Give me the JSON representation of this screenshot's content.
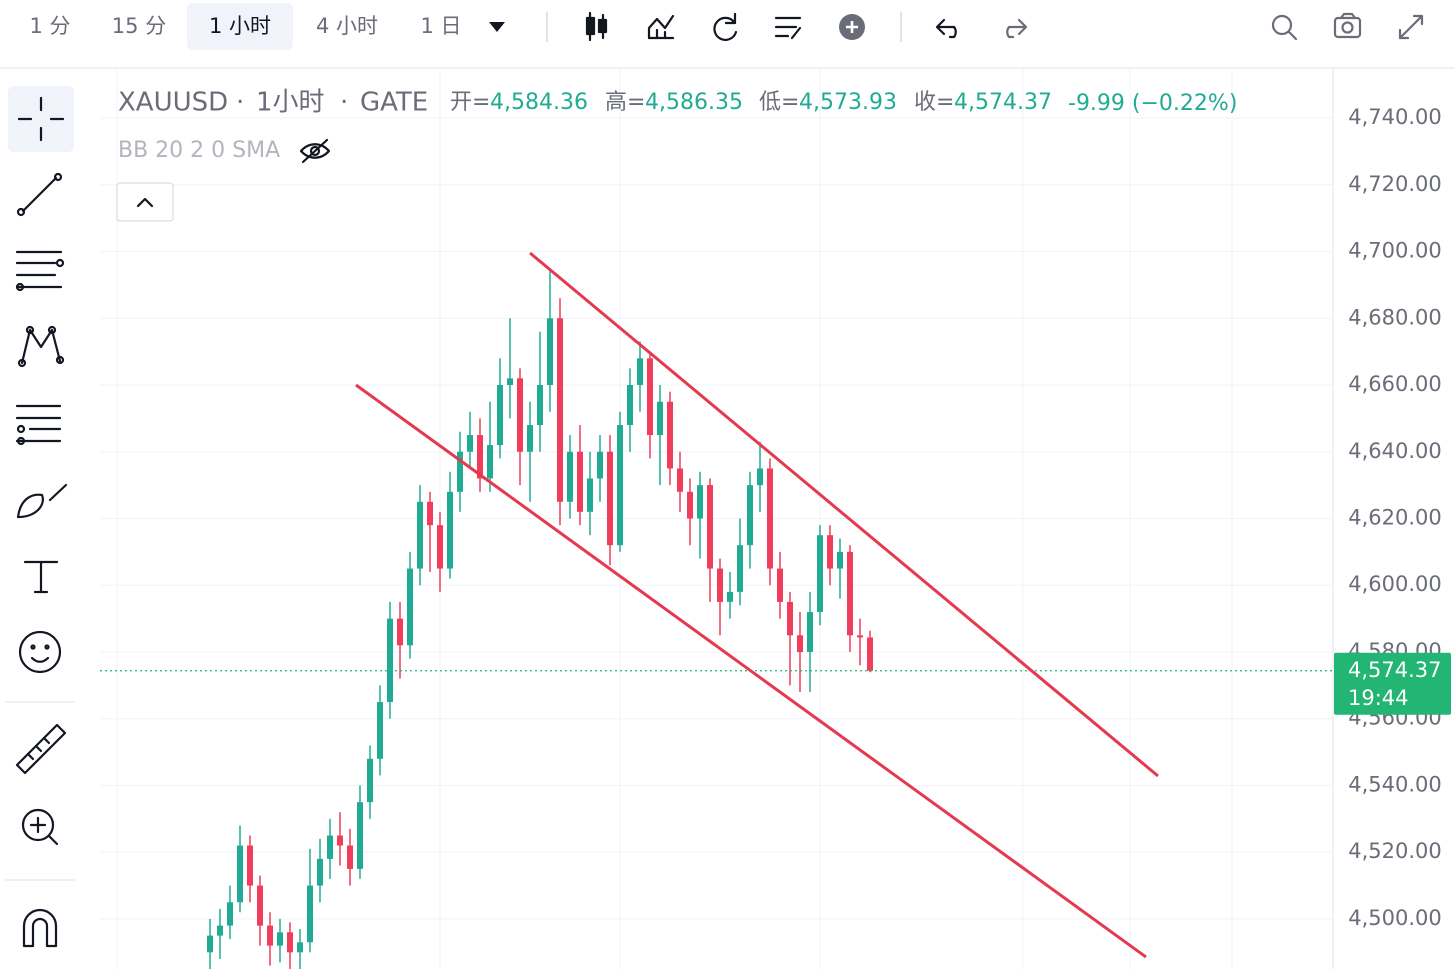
{
  "toolbar": {
    "intervals": [
      "1 分",
      "15 分",
      "1 小时",
      "4 小时",
      "1 日"
    ]
  },
  "header": {
    "symbol": "XAUUSD",
    "interval": "1小时",
    "exchange": "GATE",
    "open_label": "开=",
    "open": "4,584.36",
    "high_label": "高=",
    "high": "4,586.35",
    "low_label": "低=",
    "low": "4,573.93",
    "close_label": "收=",
    "close": "4,574.37",
    "change": "-9.99 (−0.22%)",
    "indicator": "BB 20 2 0 SMA"
  },
  "chart_data": {
    "type": "candlestick",
    "up_color": "#22ab94",
    "down_color": "#ef3d5b",
    "open": [
      4490,
      4495,
      4498,
      4505,
      4522,
      4510,
      4498,
      4492,
      4496,
      4490,
      4493,
      4510,
      4518,
      4525,
      4522,
      4515,
      4535,
      4548,
      4565,
      4590,
      4582,
      4605,
      4625,
      4618,
      4605,
      4628,
      4640,
      4645,
      4632,
      4642,
      4660,
      4662,
      4640,
      4648,
      4660,
      4680,
      4625,
      4640,
      4622,
      4632,
      4640,
      4612,
      4648,
      4660,
      4668,
      4645,
      4655,
      4635,
      4628,
      4620,
      4630,
      4605,
      4595,
      4598,
      4612,
      4630,
      4635,
      4605,
      4595,
      4585,
      4580,
      4592,
      4615,
      4605,
      4610,
      4585,
      4584.36
    ],
    "high": [
      4500,
      4503,
      4510,
      4528,
      4525,
      4513,
      4502,
      4500,
      4499,
      4497,
      4521,
      4524,
      4530,
      4532,
      4527,
      4540,
      4552,
      4570,
      4595,
      4595,
      4610,
      4630,
      4628,
      4622,
      4634,
      4646,
      4652,
      4650,
      4655,
      4668,
      4680,
      4665,
      4655,
      4676,
      4695,
      4686,
      4645,
      4648,
      4640,
      4645,
      4645,
      4652,
      4665,
      4673,
      4670,
      4660,
      4658,
      4640,
      4632,
      4634,
      4632,
      4608,
      4604,
      4620,
      4634,
      4643,
      4638,
      4610,
      4598,
      4592,
      4598,
      4618,
      4618,
      4614,
      4612,
      4590,
      4586.35
    ],
    "low": [
      4485,
      4488,
      4494,
      4502,
      4505,
      4492,
      4486,
      4487,
      4485,
      4485,
      4490,
      4505,
      4512,
      4516,
      4510,
      4512,
      4530,
      4543,
      4560,
      4572,
      4578,
      4600,
      4604,
      4598,
      4602,
      4622,
      4635,
      4628,
      4628,
      4638,
      4650,
      4630,
      4625,
      4640,
      4652,
      4618,
      4620,
      4618,
      4615,
      4625,
      4606,
      4610,
      4640,
      4652,
      4638,
      4630,
      4630,
      4622,
      4612,
      4608,
      4595,
      4585,
      4590,
      4594,
      4605,
      4622,
      4600,
      4590,
      4570,
      4568,
      4568,
      4588,
      4600,
      4596,
      4580,
      4576,
      4573.93
    ],
    "close": [
      4495,
      4498,
      4505,
      4522,
      4510,
      4498,
      4492,
      4496,
      4490,
      4493,
      4510,
      4518,
      4525,
      4522,
      4515,
      4535,
      4548,
      4565,
      4590,
      4582,
      4605,
      4625,
      4618,
      4605,
      4628,
      4640,
      4645,
      4632,
      4642,
      4660,
      4662,
      4640,
      4648,
      4660,
      4680,
      4625,
      4640,
      4622,
      4632,
      4640,
      4612,
      4648,
      4660,
      4668,
      4645,
      4655,
      4635,
      4628,
      4620,
      4630,
      4605,
      4595,
      4598,
      4612,
      4630,
      4635,
      4605,
      4595,
      4585,
      4580,
      4592,
      4615,
      4605,
      4610,
      4585,
      4584.36,
      4574.37
    ],
    "ylim": [
      4485,
      4755
    ],
    "yticks": [
      {
        "value": 4740,
        "label": "4,740.00"
      },
      {
        "value": 4720,
        "label": "4,720.00"
      },
      {
        "value": 4700,
        "label": "4,700.00"
      },
      {
        "value": 4680,
        "label": "4,680.00"
      },
      {
        "value": 4660,
        "label": "4,660.00"
      },
      {
        "value": 4640,
        "label": "4,640.00"
      },
      {
        "value": 4620,
        "label": "4,620.00"
      },
      {
        "value": 4600,
        "label": "4,600.00"
      },
      {
        "value": 4580,
        "label": "4,580.00"
      },
      {
        "value": 4560,
        "label": "4,560.00"
      },
      {
        "value": 4540,
        "label": "4,540.00"
      },
      {
        "value": 4520,
        "label": "4,520.00"
      },
      {
        "value": 4500,
        "label": "4,500.00"
      }
    ],
    "grid": true,
    "last_price": {
      "value": 4574.37,
      "label": "4,574.37"
    },
    "countdown": "19:44",
    "last_color": "#22b573"
  }
}
